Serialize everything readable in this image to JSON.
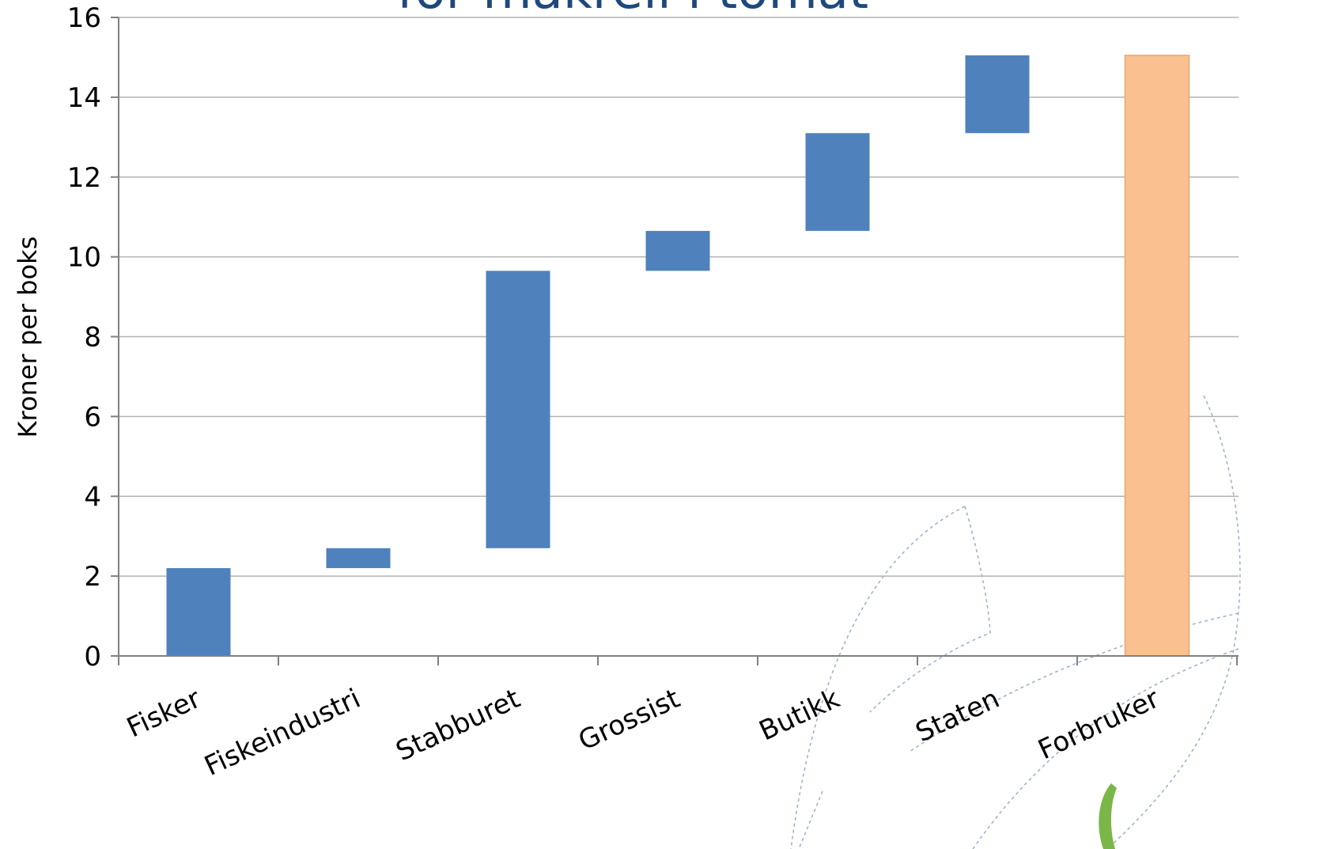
{
  "chart_data": {
    "type": "bar",
    "subtype": "waterfall",
    "title_fragment": "for makrell i tomat",
    "ylabel": "Kroner per boks",
    "xlabel": "",
    "ylim": [
      0,
      16
    ],
    "yticks": [
      0,
      2,
      4,
      6,
      8,
      10,
      12,
      14,
      16
    ],
    "grid": true,
    "legend": "none",
    "categories": [
      "Fisker",
      "Fiskeindustri",
      "Stabburet",
      "Grossist",
      "Butikk",
      "Staten",
      "Forbruker"
    ],
    "series": [
      {
        "segments": [
          {
            "category": "Fisker",
            "base": 0,
            "top": 2.2
          },
          {
            "category": "Fiskeindustri",
            "base": 2.2,
            "top": 2.7
          },
          {
            "category": "Stabburet",
            "base": 2.7,
            "top": 9.65
          },
          {
            "category": "Grossist",
            "base": 9.65,
            "top": 10.65
          },
          {
            "category": "Butikk",
            "base": 10.65,
            "top": 13.1
          },
          {
            "category": "Staten",
            "base": 13.1,
            "top": 15.05
          },
          {
            "category": "Forbruker",
            "base": 0,
            "top": 15.05
          }
        ]
      }
    ],
    "colors": {
      "increment": "#4f81bd",
      "total": "#fac090",
      "total_border": "#e6a875",
      "grid": "#b3b3b3",
      "axis": "#808080",
      "title": "#1f497d",
      "decoration": "#9aaecb",
      "logo_green": "#7ab648"
    }
  }
}
